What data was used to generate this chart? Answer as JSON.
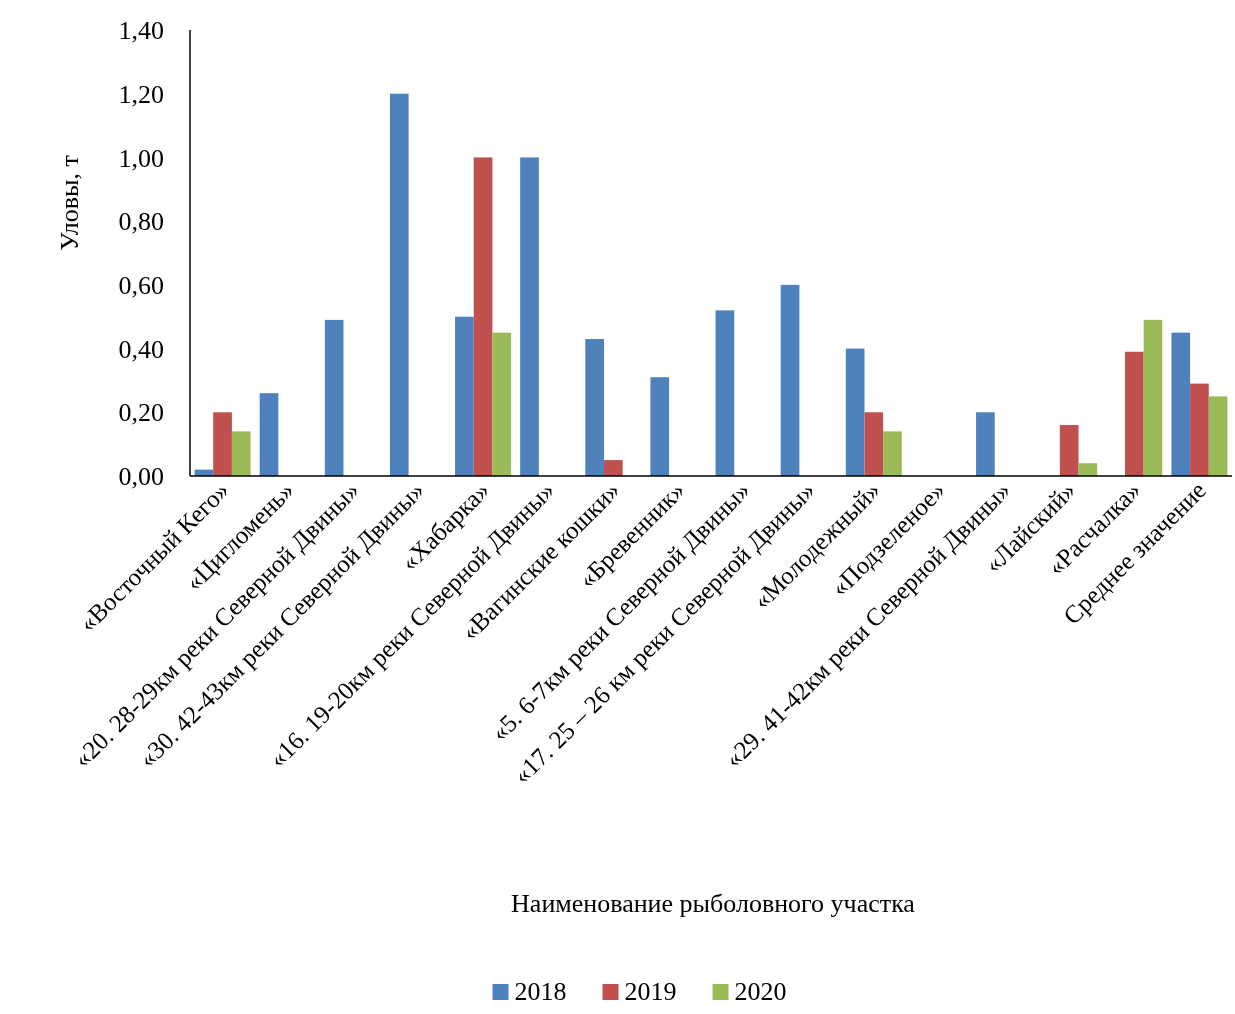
{
  "chart_data": {
    "type": "bar",
    "xlabel": "Наименование рыболовного участка",
    "ylabel": "Уловы, т",
    "categories": [
      "«Восточный Кего»",
      "«Цигломень»",
      "«20. 28-29км реки Северной Двины»",
      "«30. 42-43км реки Северной Двины»",
      "«Хабарка»",
      "«16. 19-20км реки Северной Двины»",
      "«Вагинские кошки»",
      "«Бревенник»",
      "«5. 6-7км реки Северной Двины»",
      "«17. 25 – 26 км реки Северной Двины»",
      "«Молодежный»",
      "«Подзеленое»",
      "«29. 41-42км реки Северной Двины»",
      "«Лайский»",
      "«Расчалка»",
      "Среднее значение"
    ],
    "series": [
      {
        "name": "2018",
        "color": "#4f81bd",
        "values": [
          0.02,
          0.26,
          0.49,
          1.2,
          0.5,
          1.0,
          0.43,
          0.31,
          0.52,
          0.6,
          0.4,
          null,
          0.2,
          null,
          null,
          0.45
        ]
      },
      {
        "name": "2019",
        "color": "#c0504d",
        "values": [
          0.2,
          null,
          null,
          null,
          1.0,
          null,
          0.05,
          null,
          null,
          null,
          0.2,
          null,
          null,
          0.16,
          0.39,
          0.29
        ]
      },
      {
        "name": "2020",
        "color": "#9bbb59",
        "values": [
          0.14,
          null,
          null,
          null,
          0.45,
          null,
          null,
          null,
          null,
          null,
          0.14,
          null,
          null,
          0.04,
          0.49,
          0.25
        ]
      }
    ],
    "ylim": [
      0,
      1.4
    ],
    "yticks": [
      {
        "value": 0,
        "label": "0,00"
      },
      {
        "value": 0.2,
        "label": "0,20"
      },
      {
        "value": 0.4,
        "label": "0,40"
      },
      {
        "value": 0.6,
        "label": "0,60"
      },
      {
        "value": 0.8,
        "label": "0,80"
      },
      {
        "value": 1.0,
        "label": "1,00"
      },
      {
        "value": 1.2,
        "label": "1,20"
      },
      {
        "value": 1.4,
        "label": "1,40"
      }
    ],
    "legend": "bottom"
  }
}
